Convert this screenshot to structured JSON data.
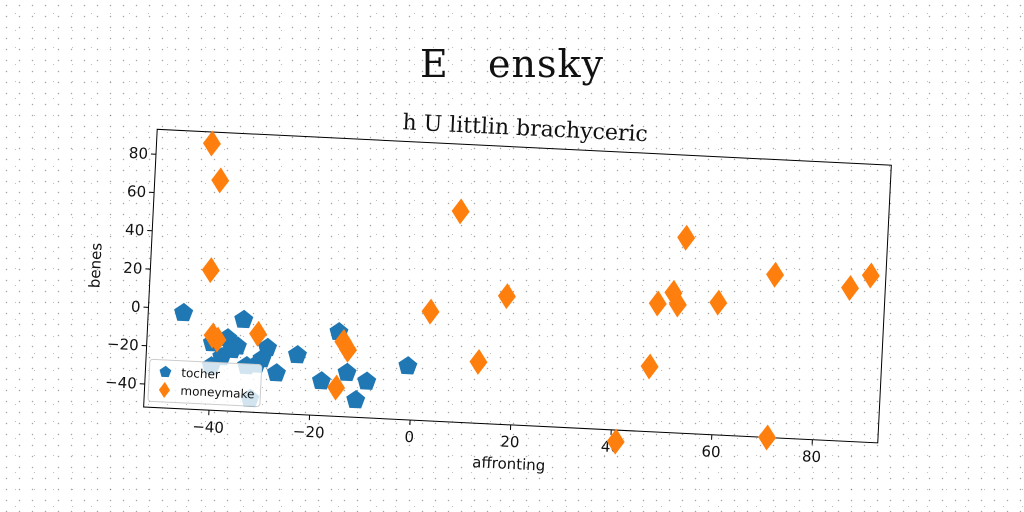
{
  "figure": {
    "suptitle": "E   ensky"
  },
  "chart_data": {
    "type": "scatter",
    "title": "h U littlin brachyceric",
    "xlabel": "affronting",
    "ylabel": "benes",
    "xlim": [
      -53,
      93
    ],
    "ylim": [
      -52,
      93
    ],
    "xticks": [
      -40,
      -20,
      0,
      20,
      40,
      60,
      80
    ],
    "yticks": [
      -40,
      -20,
      0,
      20,
      40,
      60,
      80
    ],
    "xtick_labels": [
      "−40",
      "−20",
      "0",
      "20",
      "40",
      "60",
      "80"
    ],
    "ytick_labels": [
      "−40",
      "−20",
      "0",
      "20",
      "40",
      "60",
      "80"
    ],
    "grid": false,
    "legend_position": "lower-left",
    "series": [
      {
        "name": "tocher",
        "marker": "pentagon",
        "color": "#1f77b4",
        "x": [
          -46,
          -40,
          -40,
          -38,
          -37,
          -36,
          -35,
          -34,
          -33,
          -32,
          -31,
          -30,
          -29,
          -27,
          -23,
          -18,
          -15,
          -13,
          -11,
          -9,
          -1
        ],
        "y": [
          -2,
          -17,
          -29,
          -24,
          -14,
          -20,
          -18,
          -4,
          -28,
          -45,
          -27,
          -24,
          -18,
          -31,
          -21,
          -34,
          -8,
          -29,
          -43,
          -33,
          -24
        ]
      },
      {
        "name": "moneymake",
        "marker": "diamond",
        "color": "#ff7f0e",
        "x": [
          -42,
          -40,
          -41,
          -39,
          -40,
          -31,
          -15,
          -14,
          -13,
          3,
          8,
          13,
          18,
          41,
          47,
          48,
          51,
          52,
          53,
          60,
          71,
          71,
          86,
          90
        ],
        "y": [
          87,
          68,
          21,
          -15,
          -13,
          -11,
          -37,
          -13,
          -17,
          5,
          58,
          -20,
          15,
          -58,
          -18,
          15,
          21,
          15,
          50,
          17,
          -52,
          33,
          28,
          35
        ]
      }
    ]
  }
}
